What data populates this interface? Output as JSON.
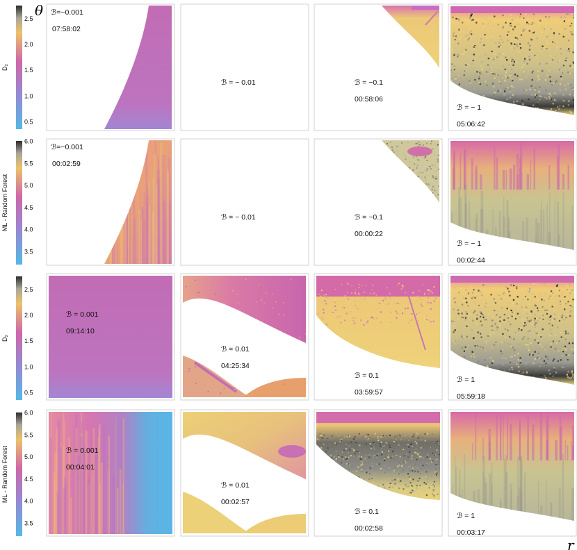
{
  "figure": {
    "theta_label": "θ",
    "r_label": "r"
  },
  "colorbars": [
    {
      "label": "D₂",
      "ticks": [
        "2.5",
        "2.0",
        "1.5",
        "1.0",
        "0.5"
      ]
    },
    {
      "label": "ML - Random Forest",
      "ticks": [
        "6.0",
        "5.5",
        "5.0",
        "4.5",
        "4.0",
        "3.5"
      ]
    },
    {
      "label": "D₂",
      "ticks": [
        "2.5",
        "2.0",
        "1.5",
        "1.0",
        "0.5"
      ]
    },
    {
      "label": "ML - Random Forest",
      "ticks": [
        "6.0",
        "5.5",
        "5.0",
        "4.5",
        "4.0",
        "3.5"
      ]
    }
  ],
  "panels": [
    {
      "b": "ℬ=−0.001",
      "t": "07:58:02"
    },
    {
      "b": "ℬ =  − 0.01",
      "t": ""
    },
    {
      "b": "ℬ = −0.1",
      "t": "00:58:06"
    },
    {
      "b": "ℬ = − 1",
      "t": "05:06:42"
    },
    {
      "b": "ℬ=−0.001",
      "t": "00:02:59"
    },
    {
      "b": "ℬ =  − 0.01",
      "t": ""
    },
    {
      "b": "ℬ = −0.1",
      "t": "00:00:22"
    },
    {
      "b": "ℬ = − 1",
      "t": "00:02:44"
    },
    {
      "b": "ℬ = 0.001",
      "t": "09:14:10"
    },
    {
      "b": "ℬ = 0.01",
      "t": "04:25:34"
    },
    {
      "b": "ℬ = 0.1",
      "t": "03:59:57"
    },
    {
      "b": "ℬ = 1",
      "t": "05:59:18"
    },
    {
      "b": "ℬ = 0.001",
      "t": "00:04:01"
    },
    {
      "b": "ℬ = 0.01",
      "t": "00:02:57"
    },
    {
      "b": "ℬ = 0.1",
      "t": "00:02:58"
    },
    {
      "b": "ℬ = 1",
      "t": "00:03:17"
    }
  ],
  "colors": {
    "cyan": "#55b8e6",
    "purple": "#b57ac6",
    "magenta": "#d26aa8",
    "pink": "#e596a0",
    "orange": "#efb06e",
    "yellow": "#efd27a",
    "gray": "#888880",
    "dark": "#333333"
  },
  "chart_data": {
    "type": "heatmap",
    "rows": 4,
    "cols": 4,
    "xlabel": "r",
    "ylabel": "θ"
  }
}
